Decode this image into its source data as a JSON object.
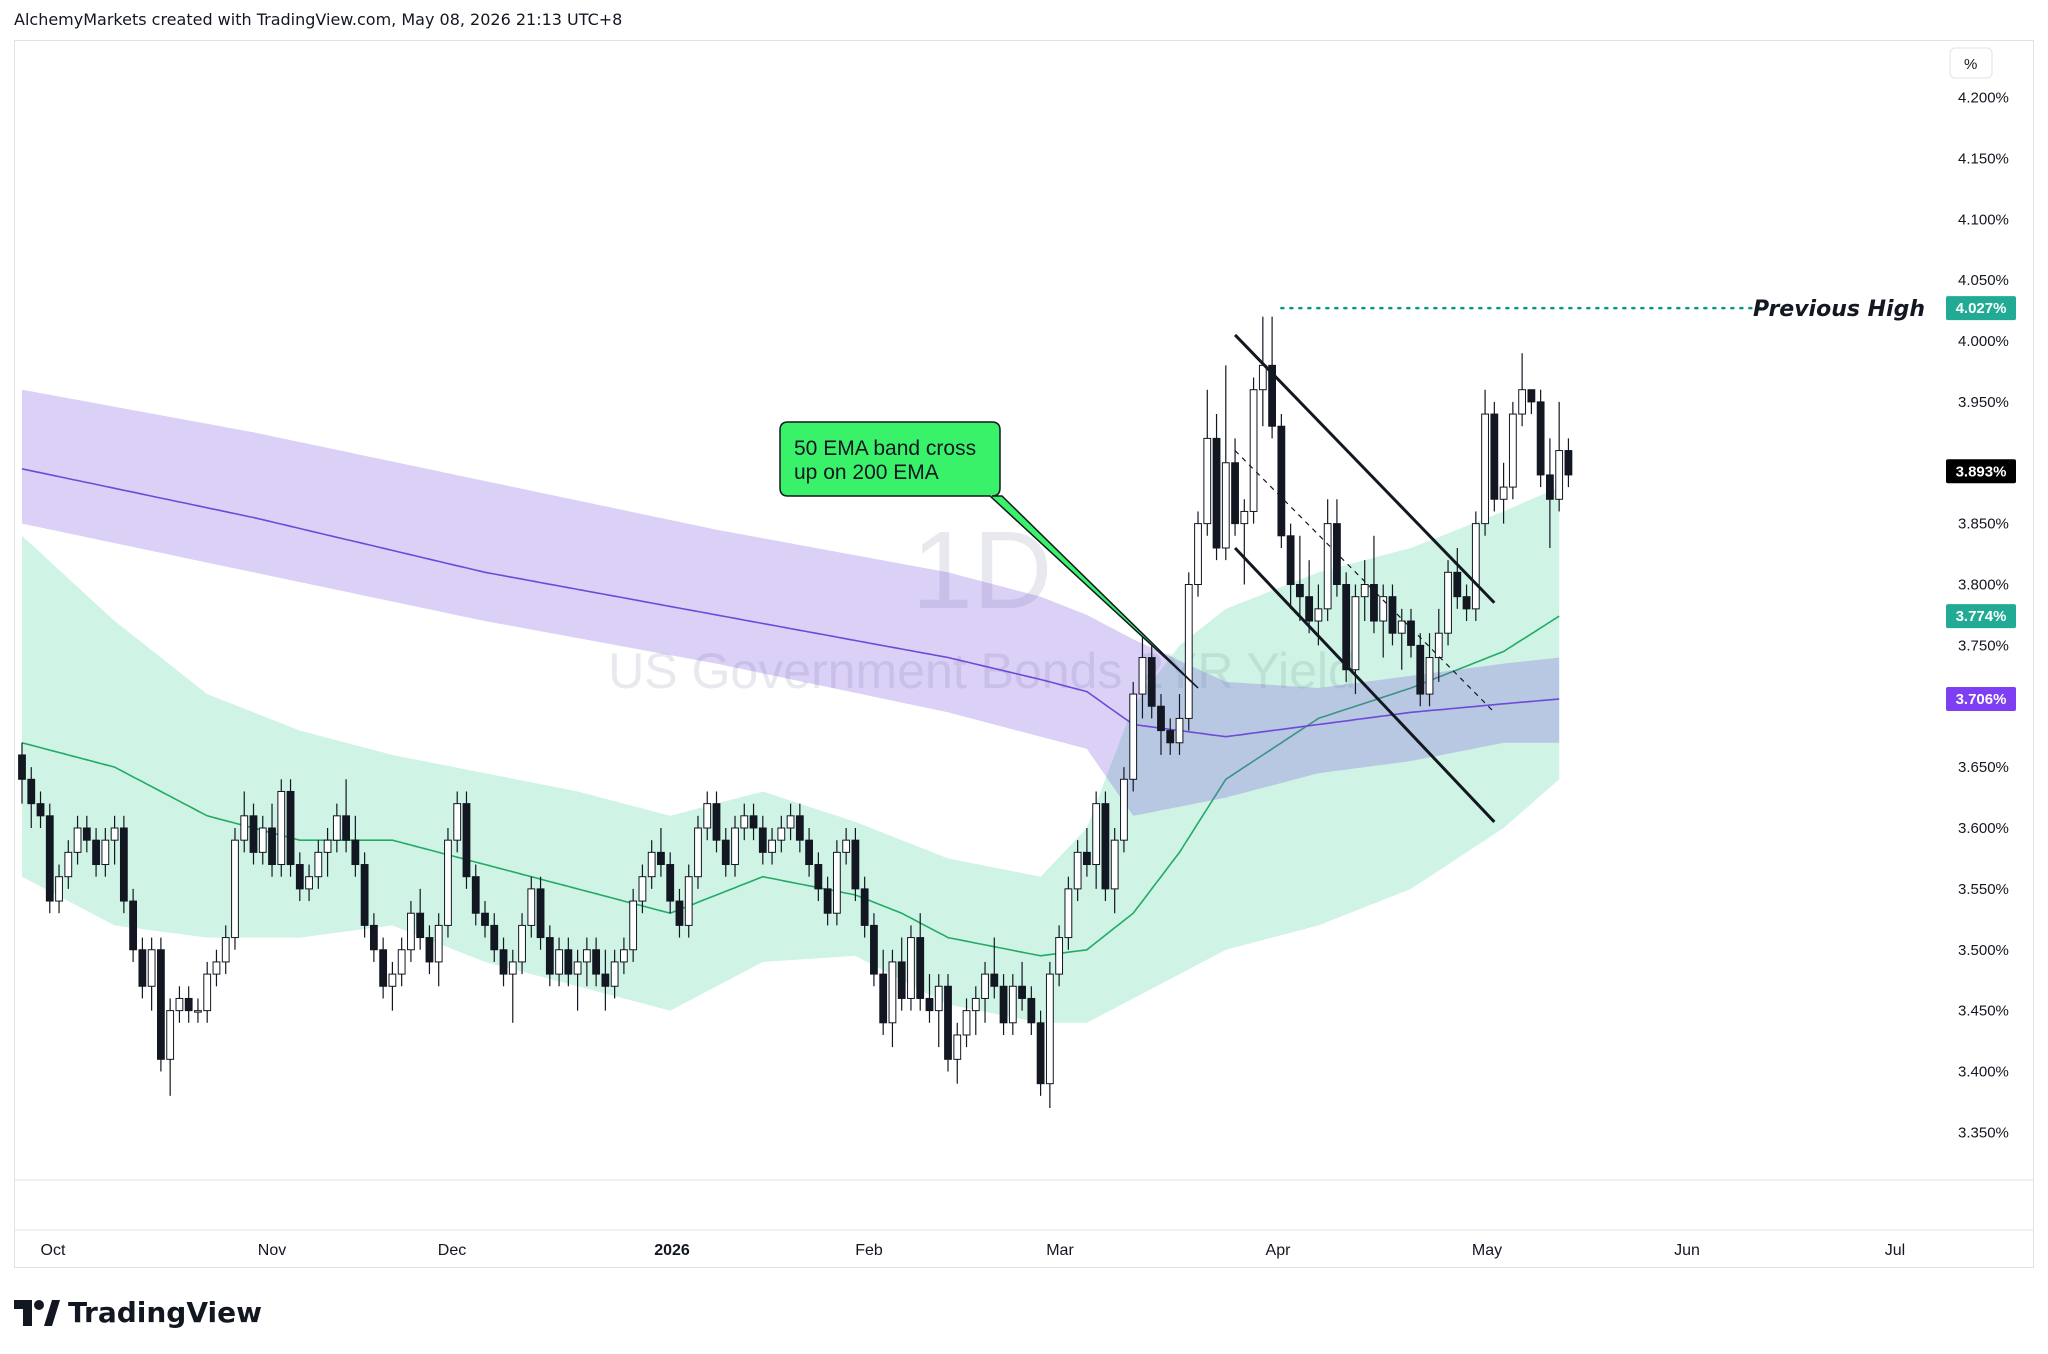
{
  "header": {
    "attribution": "AlchemyMarkets created with TradingView.com, May 08, 2026 21:13 UTC+8"
  },
  "footer": {
    "brand": "TradingView"
  },
  "watermark": {
    "interval": "1D",
    "symbol_name": "US Government Bonds 2YR Yield"
  },
  "price_axis": {
    "unit_button": "%",
    "labels": [
      "4.200%",
      "4.150%",
      "4.100%",
      "4.050%",
      "4.000%",
      "3.950%",
      "3.850%",
      "3.800%",
      "3.750%",
      "3.650%",
      "3.600%",
      "3.550%",
      "3.500%",
      "3.450%",
      "3.400%",
      "3.350%"
    ],
    "badges": [
      {
        "text": "4.027%",
        "color": "#22ab94"
      },
      {
        "text": "3.893%",
        "color": "#000000"
      },
      {
        "text": "3.774%",
        "color": "#22ab94"
      },
      {
        "text": "3.706%",
        "color": "#7e3ff2"
      }
    ]
  },
  "time_axis": {
    "labels": [
      "Oct",
      "Nov",
      "Dec",
      "2026",
      "Feb",
      "Mar",
      "Apr",
      "May",
      "Jun",
      "Jul"
    ]
  },
  "annotations": {
    "callout": {
      "line1": "50 EMA band cross",
      "line2": "up on 200 EMA",
      "fill": "#39f26a"
    },
    "previous_high_label": "Previous High",
    "previous_high_color": "#089981"
  },
  "chart_data": {
    "type": "candlestick",
    "title": "",
    "y_unit": "%",
    "ylim": [
      3.32,
      4.24
    ],
    "grid": false,
    "previous_high": 4.027,
    "last_price": 3.893,
    "ema_50_last": 3.774,
    "ema_200_last": 3.706,
    "candles": [
      [
        3.66,
        3.67,
        3.62,
        3.64
      ],
      [
        3.64,
        3.65,
        3.6,
        3.62
      ],
      [
        3.62,
        3.63,
        3.6,
        3.61
      ],
      [
        3.61,
        3.62,
        3.53,
        3.54
      ],
      [
        3.54,
        3.57,
        3.53,
        3.56
      ],
      [
        3.56,
        3.59,
        3.55,
        3.58
      ],
      [
        3.58,
        3.61,
        3.57,
        3.6
      ],
      [
        3.6,
        3.61,
        3.58,
        3.59
      ],
      [
        3.59,
        3.6,
        3.56,
        3.57
      ],
      [
        3.57,
        3.6,
        3.56,
        3.59
      ],
      [
        3.59,
        3.61,
        3.57,
        3.6
      ],
      [
        3.6,
        3.61,
        3.53,
        3.54
      ],
      [
        3.54,
        3.55,
        3.49,
        3.5
      ],
      [
        3.5,
        3.51,
        3.46,
        3.47
      ],
      [
        3.47,
        3.51,
        3.45,
        3.5
      ],
      [
        3.5,
        3.51,
        3.4,
        3.41
      ],
      [
        3.41,
        3.46,
        3.38,
        3.45
      ],
      [
        3.45,
        3.47,
        3.44,
        3.46
      ],
      [
        3.46,
        3.47,
        3.44,
        3.45
      ],
      [
        3.45,
        3.46,
        3.44,
        3.45
      ],
      [
        3.45,
        3.49,
        3.44,
        3.48
      ],
      [
        3.48,
        3.5,
        3.47,
        3.49
      ],
      [
        3.49,
        3.52,
        3.48,
        3.51
      ],
      [
        3.51,
        3.6,
        3.5,
        3.59
      ],
      [
        3.59,
        3.63,
        3.58,
        3.61
      ],
      [
        3.61,
        3.62,
        3.57,
        3.58
      ],
      [
        3.58,
        3.61,
        3.57,
        3.6
      ],
      [
        3.6,
        3.62,
        3.56,
        3.57
      ],
      [
        3.57,
        3.64,
        3.56,
        3.63
      ],
      [
        3.63,
        3.64,
        3.56,
        3.57
      ],
      [
        3.57,
        3.58,
        3.54,
        3.55
      ],
      [
        3.55,
        3.57,
        3.54,
        3.56
      ],
      [
        3.56,
        3.59,
        3.55,
        3.58
      ],
      [
        3.58,
        3.6,
        3.56,
        3.59
      ],
      [
        3.59,
        3.62,
        3.58,
        3.61
      ],
      [
        3.61,
        3.64,
        3.58,
        3.59
      ],
      [
        3.59,
        3.61,
        3.56,
        3.57
      ],
      [
        3.57,
        3.58,
        3.51,
        3.52
      ],
      [
        3.52,
        3.53,
        3.49,
        3.5
      ],
      [
        3.5,
        3.51,
        3.46,
        3.47
      ],
      [
        3.47,
        3.49,
        3.45,
        3.48
      ],
      [
        3.48,
        3.51,
        3.47,
        3.5
      ],
      [
        3.5,
        3.54,
        3.49,
        3.53
      ],
      [
        3.53,
        3.55,
        3.5,
        3.51
      ],
      [
        3.51,
        3.52,
        3.48,
        3.49
      ],
      [
        3.49,
        3.53,
        3.47,
        3.52
      ],
      [
        3.52,
        3.6,
        3.51,
        3.59
      ],
      [
        3.59,
        3.63,
        3.58,
        3.62
      ],
      [
        3.62,
        3.63,
        3.55,
        3.56
      ],
      [
        3.56,
        3.57,
        3.52,
        3.53
      ],
      [
        3.53,
        3.54,
        3.51,
        3.52
      ],
      [
        3.52,
        3.53,
        3.49,
        3.5
      ],
      [
        3.5,
        3.51,
        3.47,
        3.48
      ],
      [
        3.48,
        3.5,
        3.44,
        3.49
      ],
      [
        3.49,
        3.53,
        3.48,
        3.52
      ],
      [
        3.52,
        3.56,
        3.51,
        3.55
      ],
      [
        3.55,
        3.56,
        3.5,
        3.51
      ],
      [
        3.51,
        3.52,
        3.47,
        3.48
      ],
      [
        3.48,
        3.51,
        3.47,
        3.5
      ],
      [
        3.5,
        3.51,
        3.47,
        3.48
      ],
      [
        3.48,
        3.5,
        3.45,
        3.49
      ],
      [
        3.49,
        3.51,
        3.47,
        3.5
      ],
      [
        3.5,
        3.51,
        3.47,
        3.48
      ],
      [
        3.48,
        3.5,
        3.45,
        3.47
      ],
      [
        3.47,
        3.5,
        3.46,
        3.49
      ],
      [
        3.49,
        3.51,
        3.48,
        3.5
      ],
      [
        3.5,
        3.55,
        3.49,
        3.54
      ],
      [
        3.54,
        3.57,
        3.53,
        3.56
      ],
      [
        3.56,
        3.59,
        3.55,
        3.58
      ],
      [
        3.58,
        3.6,
        3.56,
        3.57
      ],
      [
        3.57,
        3.58,
        3.53,
        3.54
      ],
      [
        3.54,
        3.55,
        3.51,
        3.52
      ],
      [
        3.52,
        3.57,
        3.51,
        3.56
      ],
      [
        3.56,
        3.61,
        3.55,
        3.6
      ],
      [
        3.6,
        3.63,
        3.59,
        3.62
      ],
      [
        3.62,
        3.63,
        3.58,
        3.59
      ],
      [
        3.59,
        3.6,
        3.56,
        3.57
      ],
      [
        3.57,
        3.61,
        3.56,
        3.6
      ],
      [
        3.6,
        3.62,
        3.59,
        3.61
      ],
      [
        3.61,
        3.62,
        3.59,
        3.6
      ],
      [
        3.6,
        3.61,
        3.57,
        3.58
      ],
      [
        3.58,
        3.6,
        3.57,
        3.59
      ],
      [
        3.59,
        3.61,
        3.58,
        3.6
      ],
      [
        3.6,
        3.62,
        3.59,
        3.61
      ],
      [
        3.61,
        3.62,
        3.58,
        3.59
      ],
      [
        3.59,
        3.6,
        3.56,
        3.57
      ],
      [
        3.57,
        3.58,
        3.54,
        3.55
      ],
      [
        3.55,
        3.56,
        3.52,
        3.53
      ],
      [
        3.53,
        3.59,
        3.52,
        3.58
      ],
      [
        3.58,
        3.6,
        3.57,
        3.59
      ],
      [
        3.59,
        3.6,
        3.54,
        3.55
      ],
      [
        3.55,
        3.56,
        3.51,
        3.52
      ],
      [
        3.52,
        3.53,
        3.47,
        3.48
      ],
      [
        3.48,
        3.5,
        3.43,
        3.44
      ],
      [
        3.44,
        3.5,
        3.42,
        3.49
      ],
      [
        3.49,
        3.51,
        3.45,
        3.46
      ],
      [
        3.46,
        3.52,
        3.45,
        3.51
      ],
      [
        3.51,
        3.53,
        3.45,
        3.46
      ],
      [
        3.46,
        3.48,
        3.44,
        3.45
      ],
      [
        3.45,
        3.48,
        3.42,
        3.47
      ],
      [
        3.47,
        3.48,
        3.4,
        3.41
      ],
      [
        3.41,
        3.44,
        3.39,
        3.43
      ],
      [
        3.43,
        3.46,
        3.42,
        3.45
      ],
      [
        3.45,
        3.47,
        3.43,
        3.46
      ],
      [
        3.46,
        3.49,
        3.44,
        3.48
      ],
      [
        3.48,
        3.51,
        3.46,
        3.47
      ],
      [
        3.47,
        3.48,
        3.43,
        3.44
      ],
      [
        3.44,
        3.48,
        3.43,
        3.47
      ],
      [
        3.47,
        3.49,
        3.45,
        3.46
      ],
      [
        3.46,
        3.47,
        3.43,
        3.44
      ],
      [
        3.44,
        3.45,
        3.38,
        3.39
      ],
      [
        3.39,
        3.49,
        3.37,
        3.48
      ],
      [
        3.48,
        3.52,
        3.47,
        3.51
      ],
      [
        3.51,
        3.56,
        3.5,
        3.55
      ],
      [
        3.55,
        3.59,
        3.54,
        3.58
      ],
      [
        3.58,
        3.6,
        3.56,
        3.57
      ],
      [
        3.57,
        3.63,
        3.55,
        3.62
      ],
      [
        3.62,
        3.63,
        3.54,
        3.55
      ],
      [
        3.55,
        3.6,
        3.53,
        3.59
      ],
      [
        3.59,
        3.65,
        3.58,
        3.64
      ],
      [
        3.64,
        3.72,
        3.63,
        3.71
      ],
      [
        3.71,
        3.76,
        3.69,
        3.74
      ],
      [
        3.74,
        3.75,
        3.69,
        3.7
      ],
      [
        3.7,
        3.71,
        3.66,
        3.68
      ],
      [
        3.68,
        3.69,
        3.66,
        3.67
      ],
      [
        3.67,
        3.71,
        3.66,
        3.69
      ],
      [
        3.69,
        3.81,
        3.68,
        3.8
      ],
      [
        3.8,
        3.86,
        3.79,
        3.85
      ],
      [
        3.85,
        3.96,
        3.84,
        3.92
      ],
      [
        3.92,
        3.94,
        3.82,
        3.83
      ],
      [
        3.83,
        3.98,
        3.82,
        3.9
      ],
      [
        3.9,
        3.92,
        3.84,
        3.85
      ],
      [
        3.85,
        3.87,
        3.8,
        3.86
      ],
      [
        3.86,
        3.97,
        3.85,
        3.96
      ],
      [
        3.96,
        4.02,
        3.93,
        3.98
      ],
      [
        3.98,
        4.02,
        3.92,
        3.93
      ],
      [
        3.93,
        3.94,
        3.83,
        3.84
      ],
      [
        3.84,
        3.85,
        3.78,
        3.8
      ],
      [
        3.8,
        3.84,
        3.77,
        3.79
      ],
      [
        3.79,
        3.82,
        3.76,
        3.77
      ],
      [
        3.77,
        3.8,
        3.75,
        3.78
      ],
      [
        3.78,
        3.87,
        3.77,
        3.85
      ],
      [
        3.85,
        3.87,
        3.79,
        3.8
      ],
      [
        3.8,
        3.81,
        3.72,
        3.73
      ],
      [
        3.73,
        3.8,
        3.71,
        3.79
      ],
      [
        3.79,
        3.82,
        3.77,
        3.8
      ],
      [
        3.8,
        3.84,
        3.76,
        3.77
      ],
      [
        3.77,
        3.8,
        3.74,
        3.79
      ],
      [
        3.79,
        3.8,
        3.75,
        3.76
      ],
      [
        3.76,
        3.78,
        3.73,
        3.77
      ],
      [
        3.77,
        3.78,
        3.74,
        3.75
      ],
      [
        3.75,
        3.76,
        3.7,
        3.71
      ],
      [
        3.71,
        3.76,
        3.7,
        3.74
      ],
      [
        3.74,
        3.78,
        3.72,
        3.76
      ],
      [
        3.76,
        3.82,
        3.75,
        3.81
      ],
      [
        3.81,
        3.83,
        3.78,
        3.79
      ],
      [
        3.79,
        3.8,
        3.77,
        3.78
      ],
      [
        3.78,
        3.86,
        3.77,
        3.85
      ],
      [
        3.85,
        3.96,
        3.84,
        3.94
      ],
      [
        3.94,
        3.95,
        3.86,
        3.87
      ],
      [
        3.87,
        3.9,
        3.85,
        3.88
      ],
      [
        3.88,
        3.95,
        3.87,
        3.94
      ],
      [
        3.94,
        3.99,
        3.93,
        3.96
      ],
      [
        3.96,
        3.96,
        3.94,
        3.95
      ],
      [
        3.95,
        3.96,
        3.88,
        3.89
      ],
      [
        3.89,
        3.92,
        3.83,
        3.87
      ],
      [
        3.87,
        3.95,
        3.86,
        3.91
      ],
      [
        3.91,
        3.92,
        3.88,
        3.89
      ]
    ],
    "ema_200_band": {
      "x_index": [
        0,
        25,
        50,
        75,
        100,
        110,
        115,
        120,
        130,
        140,
        150,
        160,
        166
      ],
      "center": [
        3.895,
        3.855,
        3.81,
        3.775,
        3.74,
        3.722,
        3.712,
        3.685,
        3.675,
        3.685,
        3.695,
        3.702,
        3.706
      ],
      "upper": [
        3.96,
        3.925,
        3.885,
        3.845,
        3.81,
        3.79,
        3.775,
        3.755,
        3.72,
        3.715,
        3.725,
        3.735,
        3.74
      ],
      "lower": [
        3.85,
        3.81,
        3.77,
        3.735,
        3.695,
        3.675,
        3.665,
        3.61,
        3.625,
        3.645,
        3.655,
        3.67,
        3.67
      ]
    },
    "ema_50_band": {
      "x_index": [
        0,
        10,
        20,
        30,
        40,
        50,
        60,
        70,
        80,
        90,
        95,
        100,
        110,
        115,
        120,
        125,
        130,
        140,
        150,
        160,
        166
      ],
      "center": [
        3.67,
        3.65,
        3.61,
        3.59,
        3.59,
        3.57,
        3.55,
        3.53,
        3.56,
        3.545,
        3.53,
        3.51,
        3.495,
        3.5,
        3.53,
        3.58,
        3.64,
        3.69,
        3.715,
        3.745,
        3.774
      ],
      "upper": [
        3.84,
        3.77,
        3.71,
        3.68,
        3.66,
        3.645,
        3.63,
        3.61,
        3.63,
        3.605,
        3.59,
        3.575,
        3.56,
        3.6,
        3.7,
        3.75,
        3.78,
        3.81,
        3.83,
        3.86,
        3.88
      ],
      "lower": [
        3.56,
        3.52,
        3.51,
        3.51,
        3.52,
        3.49,
        3.47,
        3.45,
        3.49,
        3.495,
        3.475,
        3.455,
        3.44,
        3.44,
        3.46,
        3.48,
        3.5,
        3.52,
        3.55,
        3.6,
        3.64
      ]
    },
    "channel": {
      "upper": {
        "x": [
          131,
          159
        ],
        "y": [
          4.005,
          3.785
        ]
      },
      "lower": {
        "x": [
          131,
          159
        ],
        "y": [
          3.83,
          3.605
        ]
      },
      "midline": {
        "x": [
          131,
          159
        ],
        "y": [
          3.91,
          3.695
        ]
      }
    },
    "callout_target": {
      "x": 127,
      "y": 3.715
    }
  }
}
